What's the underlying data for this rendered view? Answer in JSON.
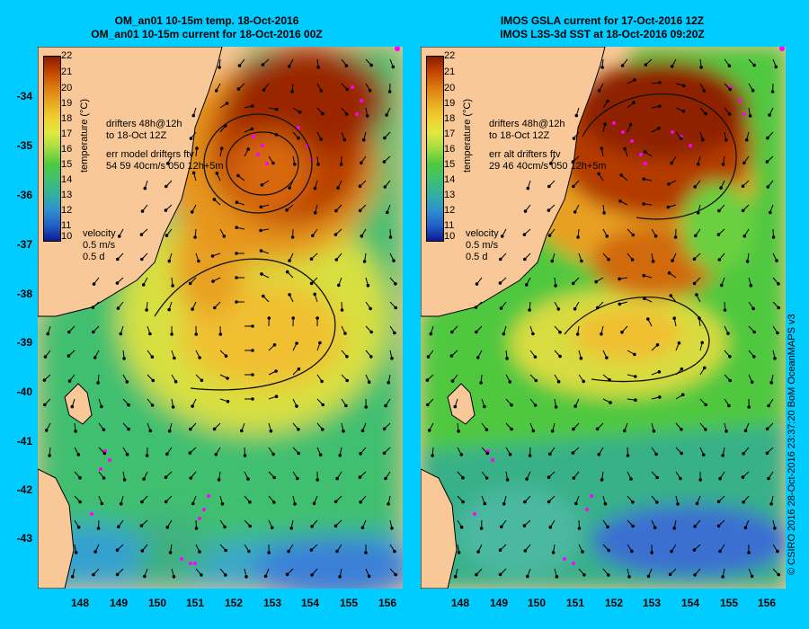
{
  "titles": {
    "left": [
      "OM_an01 10-15m temp. 18-Oct-2016",
      "OM_an01 10-15m current for 18-Oct-2016 00Z"
    ],
    "right": [
      "IMOS GSLA current for 17-Oct-2016 12Z",
      "IMOS L3S-3d SST at 18-Oct-2016 09:20Z"
    ]
  },
  "y_ticks": [
    "-34",
    "-35",
    "-36",
    "-37",
    "-38",
    "-39",
    "-40",
    "-41",
    "-42",
    "-43"
  ],
  "x_ticks": [
    "148",
    "149",
    "150",
    "151",
    "152",
    "153",
    "154",
    "155",
    "156"
  ],
  "colorbar": {
    "title": "temperature (°C)",
    "ticks": [
      "22",
      "21",
      "20",
      "19",
      "18",
      "17",
      "16",
      "15",
      "14",
      "13",
      "12",
      "11",
      "10"
    ],
    "colors": [
      "#8b1a00",
      "#c44400",
      "#dd7a10",
      "#e8a820",
      "#f0d030",
      "#e0e840",
      "#a0dc40",
      "#50c840",
      "#40c070",
      "#30b0a0",
      "#3090d0",
      "#2060c8",
      "#101890"
    ]
  },
  "left_panel": {
    "drifters_text": [
      "drifters 48h@12h",
      "to 18-Oct 12Z"
    ],
    "err_text": [
      "err model drifters ftv",
      "54 59 40cm/s 050 12h+5m"
    ],
    "velocity_text": [
      "velocity",
      "0.5 m/s",
      "0.5 d"
    ]
  },
  "right_panel": {
    "drifters_text": [
      "drifters 48h@12h",
      "to 18-Oct 12Z"
    ],
    "err_text": [
      "err alt drifters ftv",
      "29 46 40cm/s 050 12h+5m"
    ],
    "velocity_text": [
      "velocity",
      "0.5 m/s",
      "0.5 d"
    ]
  },
  "credit": "© CSIRO 2016  28-Oct-2016 23:37:20 BoM OceanMAPS v3",
  "map_data": {
    "lon_range": [
      147.0,
      156.5
    ],
    "lat_range": [
      -43.9,
      -33.0
    ],
    "projection": "equirectangular"
  }
}
